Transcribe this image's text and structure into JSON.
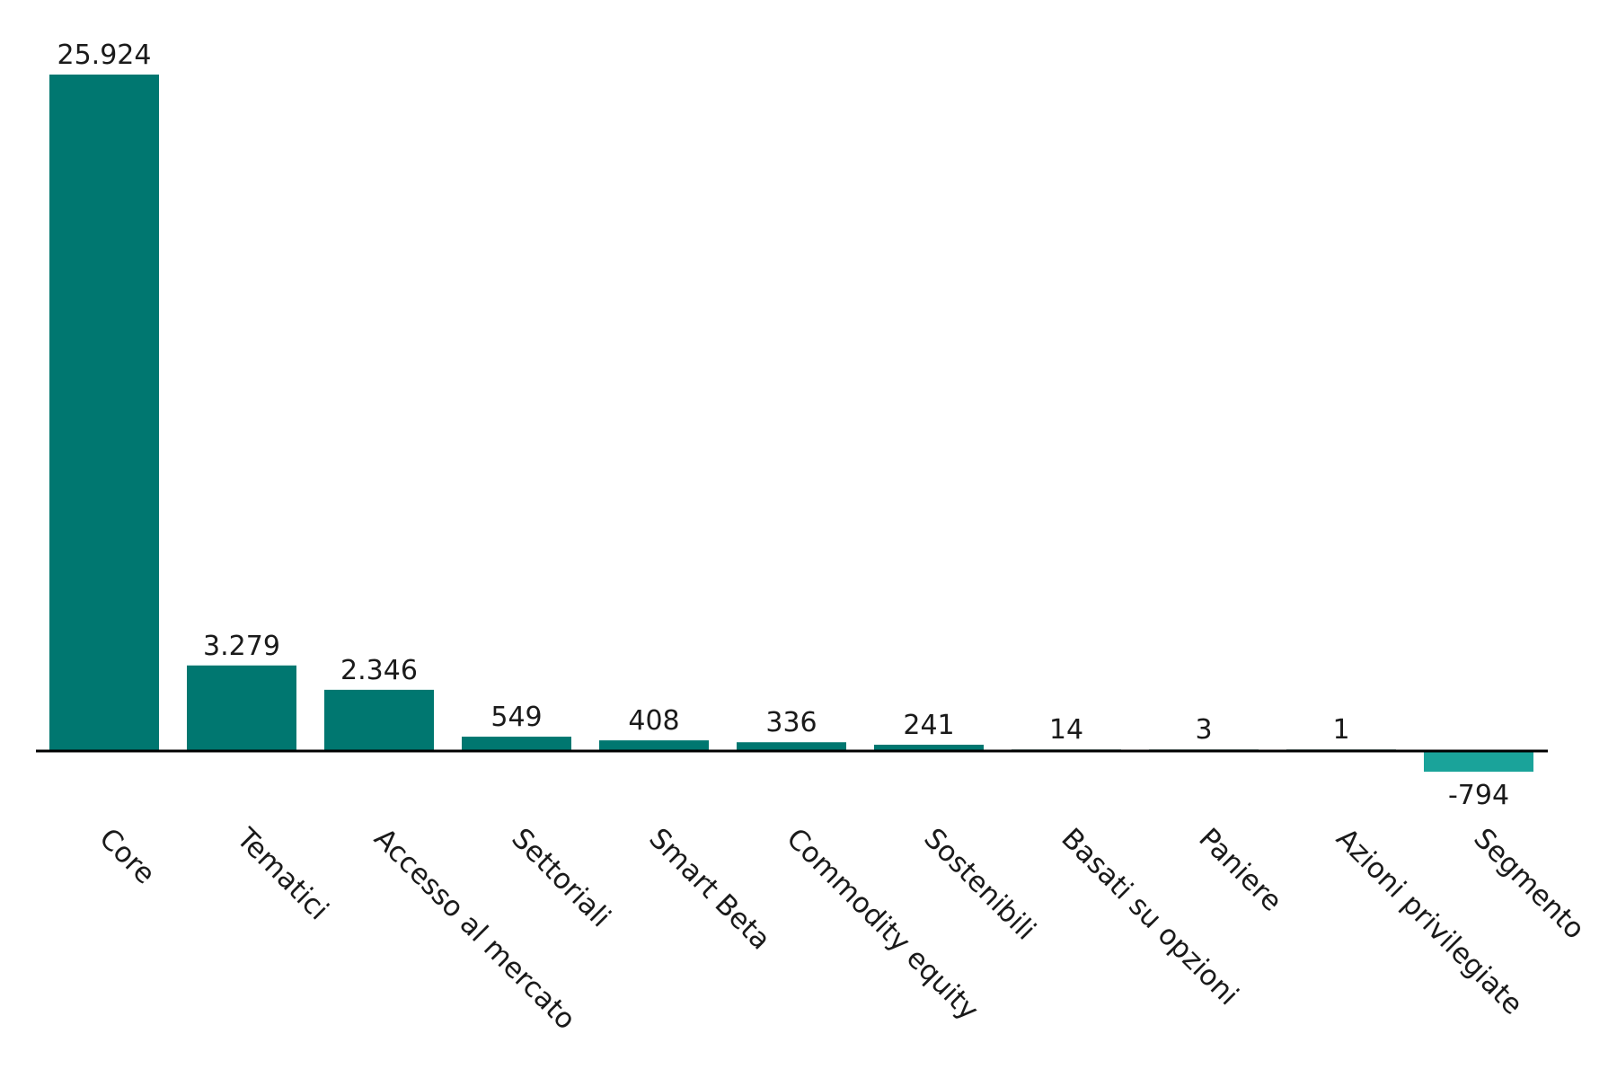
{
  "chart_data": {
    "type": "bar",
    "categories": [
      "Core",
      "Tematici",
      "Accesso al mercato",
      "Settoriali",
      "Smart Beta",
      "Commodity equity",
      "Sostenibili",
      "Basati su opzioni",
      "Paniere",
      "Azioni privilegiate",
      "Segmento"
    ],
    "values": [
      25924,
      3279,
      2346,
      549,
      408,
      336,
      241,
      14,
      3,
      1,
      -794
    ],
    "value_labels": [
      "25.924",
      "3.279",
      "2.346",
      "549",
      "408",
      "336",
      "241",
      "14",
      "3",
      "1",
      "-794"
    ],
    "colors": {
      "positive": "#007770",
      "negative": "#1aa39a",
      "baseline": "#000000"
    },
    "grid": false,
    "legend": "none"
  }
}
